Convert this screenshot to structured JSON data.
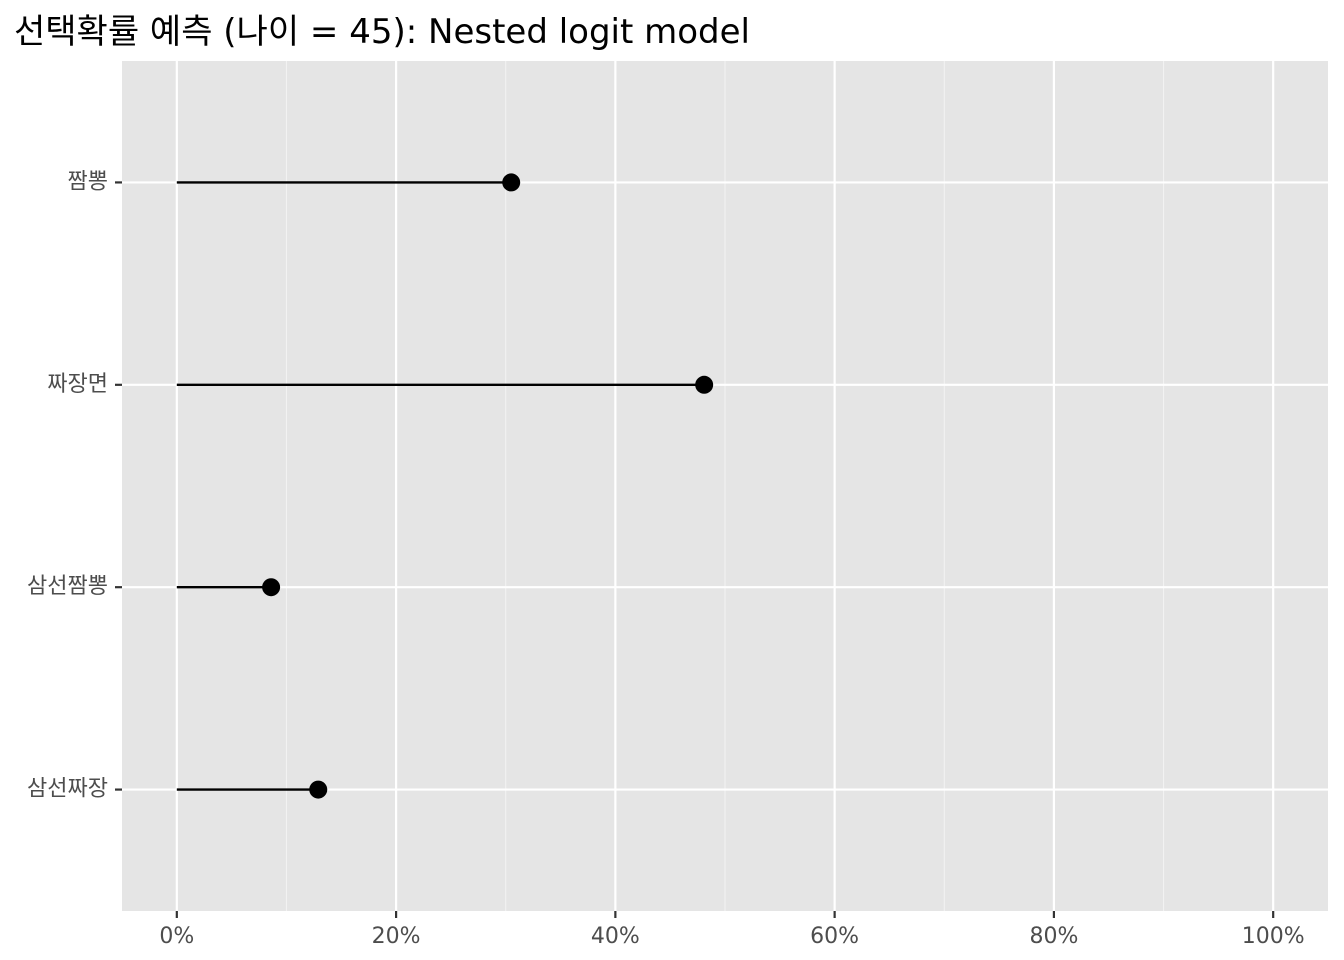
{
  "chart_data": {
    "type": "lollipop",
    "title": "선택확률 예측 (나이 = 45): Nested logit model",
    "xlabel": "",
    "ylabel": "",
    "categories": [
      "짬뽕",
      "짜장면",
      "삼선짬뽕",
      "삼선짜장"
    ],
    "values": [
      0.305,
      0.481,
      0.086,
      0.129
    ],
    "xlim": [
      -0.05,
      1.05
    ],
    "x_ticks": [
      0,
      0.2,
      0.4,
      0.6,
      0.8,
      1.0
    ],
    "x_tick_labels": [
      "0%",
      "20%",
      "40%",
      "60%",
      "80%",
      "100%"
    ],
    "grid": true,
    "legend": "none",
    "colors": {
      "panel_background": "#e5e5e5",
      "grid_major": "#ffffff",
      "grid_minor": "#f2f2f2",
      "segment": "#000000",
      "point": "#000000",
      "tick_text": "#4d4d4d",
      "tick_mark": "#333333"
    }
  }
}
